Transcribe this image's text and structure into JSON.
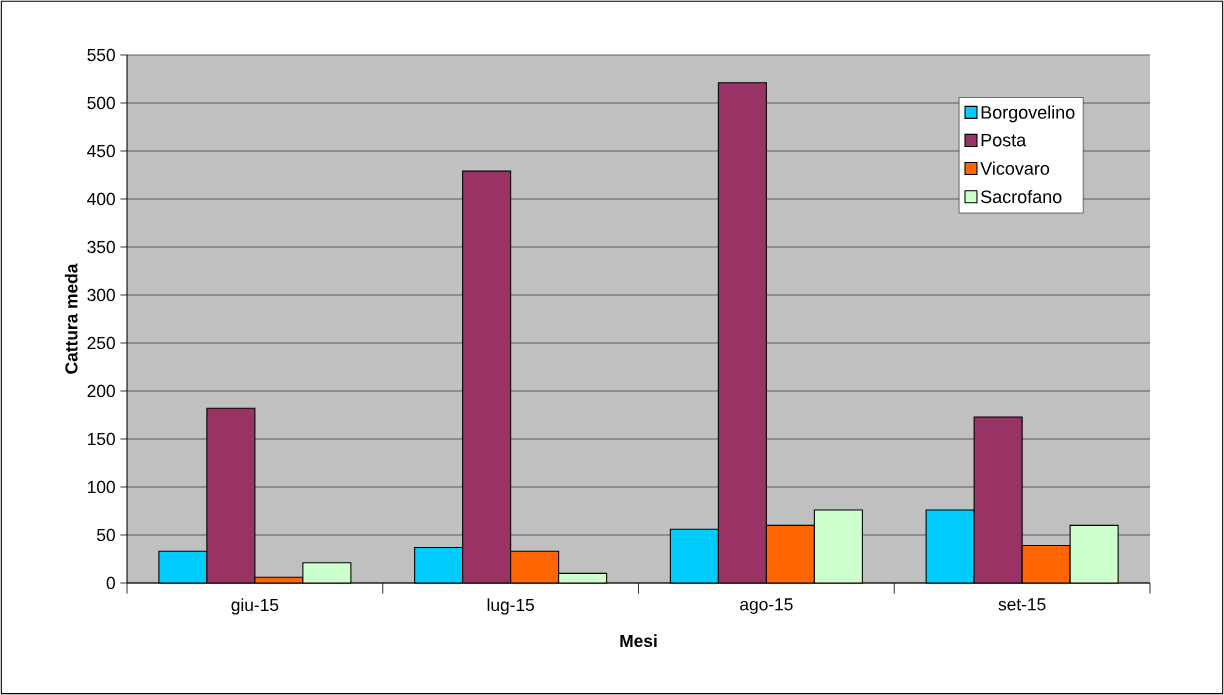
{
  "chart_data": {
    "type": "bar",
    "xlabel": "Mesi",
    "ylabel": "Cattura meda",
    "categories": [
      "giu-15",
      "lug-15",
      "ago-15",
      "set-15"
    ],
    "series": [
      {
        "name": "Borgovelino",
        "color": "#00ccff",
        "values": [
          33,
          37,
          56,
          76
        ]
      },
      {
        "name": "Posta",
        "color": "#993366",
        "values": [
          182,
          429,
          521,
          173
        ]
      },
      {
        "name": "Vicovaro",
        "color": "#ff6600",
        "values": [
          6,
          33,
          60,
          39
        ]
      },
      {
        "name": "Sacrofano",
        "color": "#ccffcc",
        "values": [
          21,
          10,
          76,
          60
        ]
      }
    ],
    "ylim": [
      0,
      550
    ],
    "yticks": [
      0,
      50,
      100,
      150,
      200,
      250,
      300,
      350,
      400,
      450,
      500,
      550
    ],
    "grid": "y",
    "legend": "top right"
  }
}
